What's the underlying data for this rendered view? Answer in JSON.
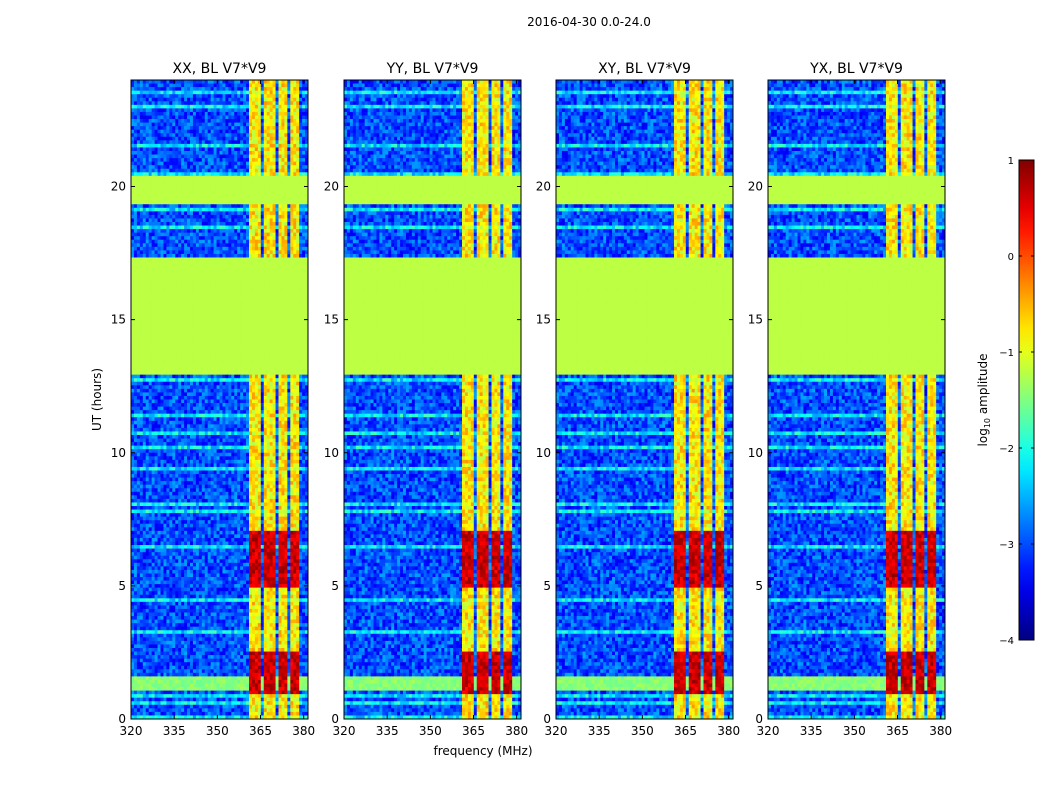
{
  "figure": {
    "title": "2016-04-30 0.0-24.0"
  },
  "chart_data": {
    "type": "heatmap",
    "panels": [
      {
        "title": "XX, BL V7*V9",
        "ylabel": "UT (hours)",
        "xlabel": ""
      },
      {
        "title": "YY, BL V7*V9",
        "ylabel": "",
        "xlabel": "frequency (MHz)"
      },
      {
        "title": "XY, BL V7*V9",
        "ylabel": "",
        "xlabel": ""
      },
      {
        "title": "YX, BL V7*V9",
        "ylabel": "",
        "xlabel": ""
      }
    ],
    "xlim": [
      320,
      381.5
    ],
    "ylim": [
      0,
      24
    ],
    "xticks": [
      320,
      335,
      350,
      365,
      380
    ],
    "xtick_labels": [
      "320",
      "335",
      "350",
      "365",
      "380"
    ],
    "yticks": [
      0,
      5,
      10,
      15,
      20
    ],
    "ytick_labels": [
      "0",
      "5",
      "10",
      "15",
      "20"
    ],
    "colorbar": {
      "label_main": "log",
      "label_sub": "10",
      "label_tail": " amplitude",
      "range": [
        -4,
        1
      ],
      "ticks": [
        -4,
        -3,
        -2,
        -1,
        0,
        1
      ],
      "tick_labels": [
        "−4",
        "−3",
        "−2",
        "−1",
        "0",
        "1"
      ],
      "colormap": "jet"
    },
    "flagged_ut_ranges": [
      [
        12.9,
        17.3
      ],
      [
        19.3,
        20.4
      ]
    ],
    "flagged_value": -1.2,
    "rfi_band_mhz": [
      361.5,
      379.5
    ],
    "rfi_channel_gaps_mhz": [
      [
        365.5,
        366.4
      ],
      [
        370.0,
        370.9
      ],
      [
        374.5,
        375.4
      ],
      [
        378.3,
        379.0
      ]
    ],
    "background_level": -3.0,
    "rfi_level": -0.8,
    "hot_ut_ranges": [
      [
        1.0,
        2.5
      ],
      [
        5.0,
        7.0
      ]
    ],
    "hot_level": 0.5,
    "strong_rfi_ut": [
      1.1,
      1.6
    ],
    "strong_rfi_level": -1.6
  }
}
